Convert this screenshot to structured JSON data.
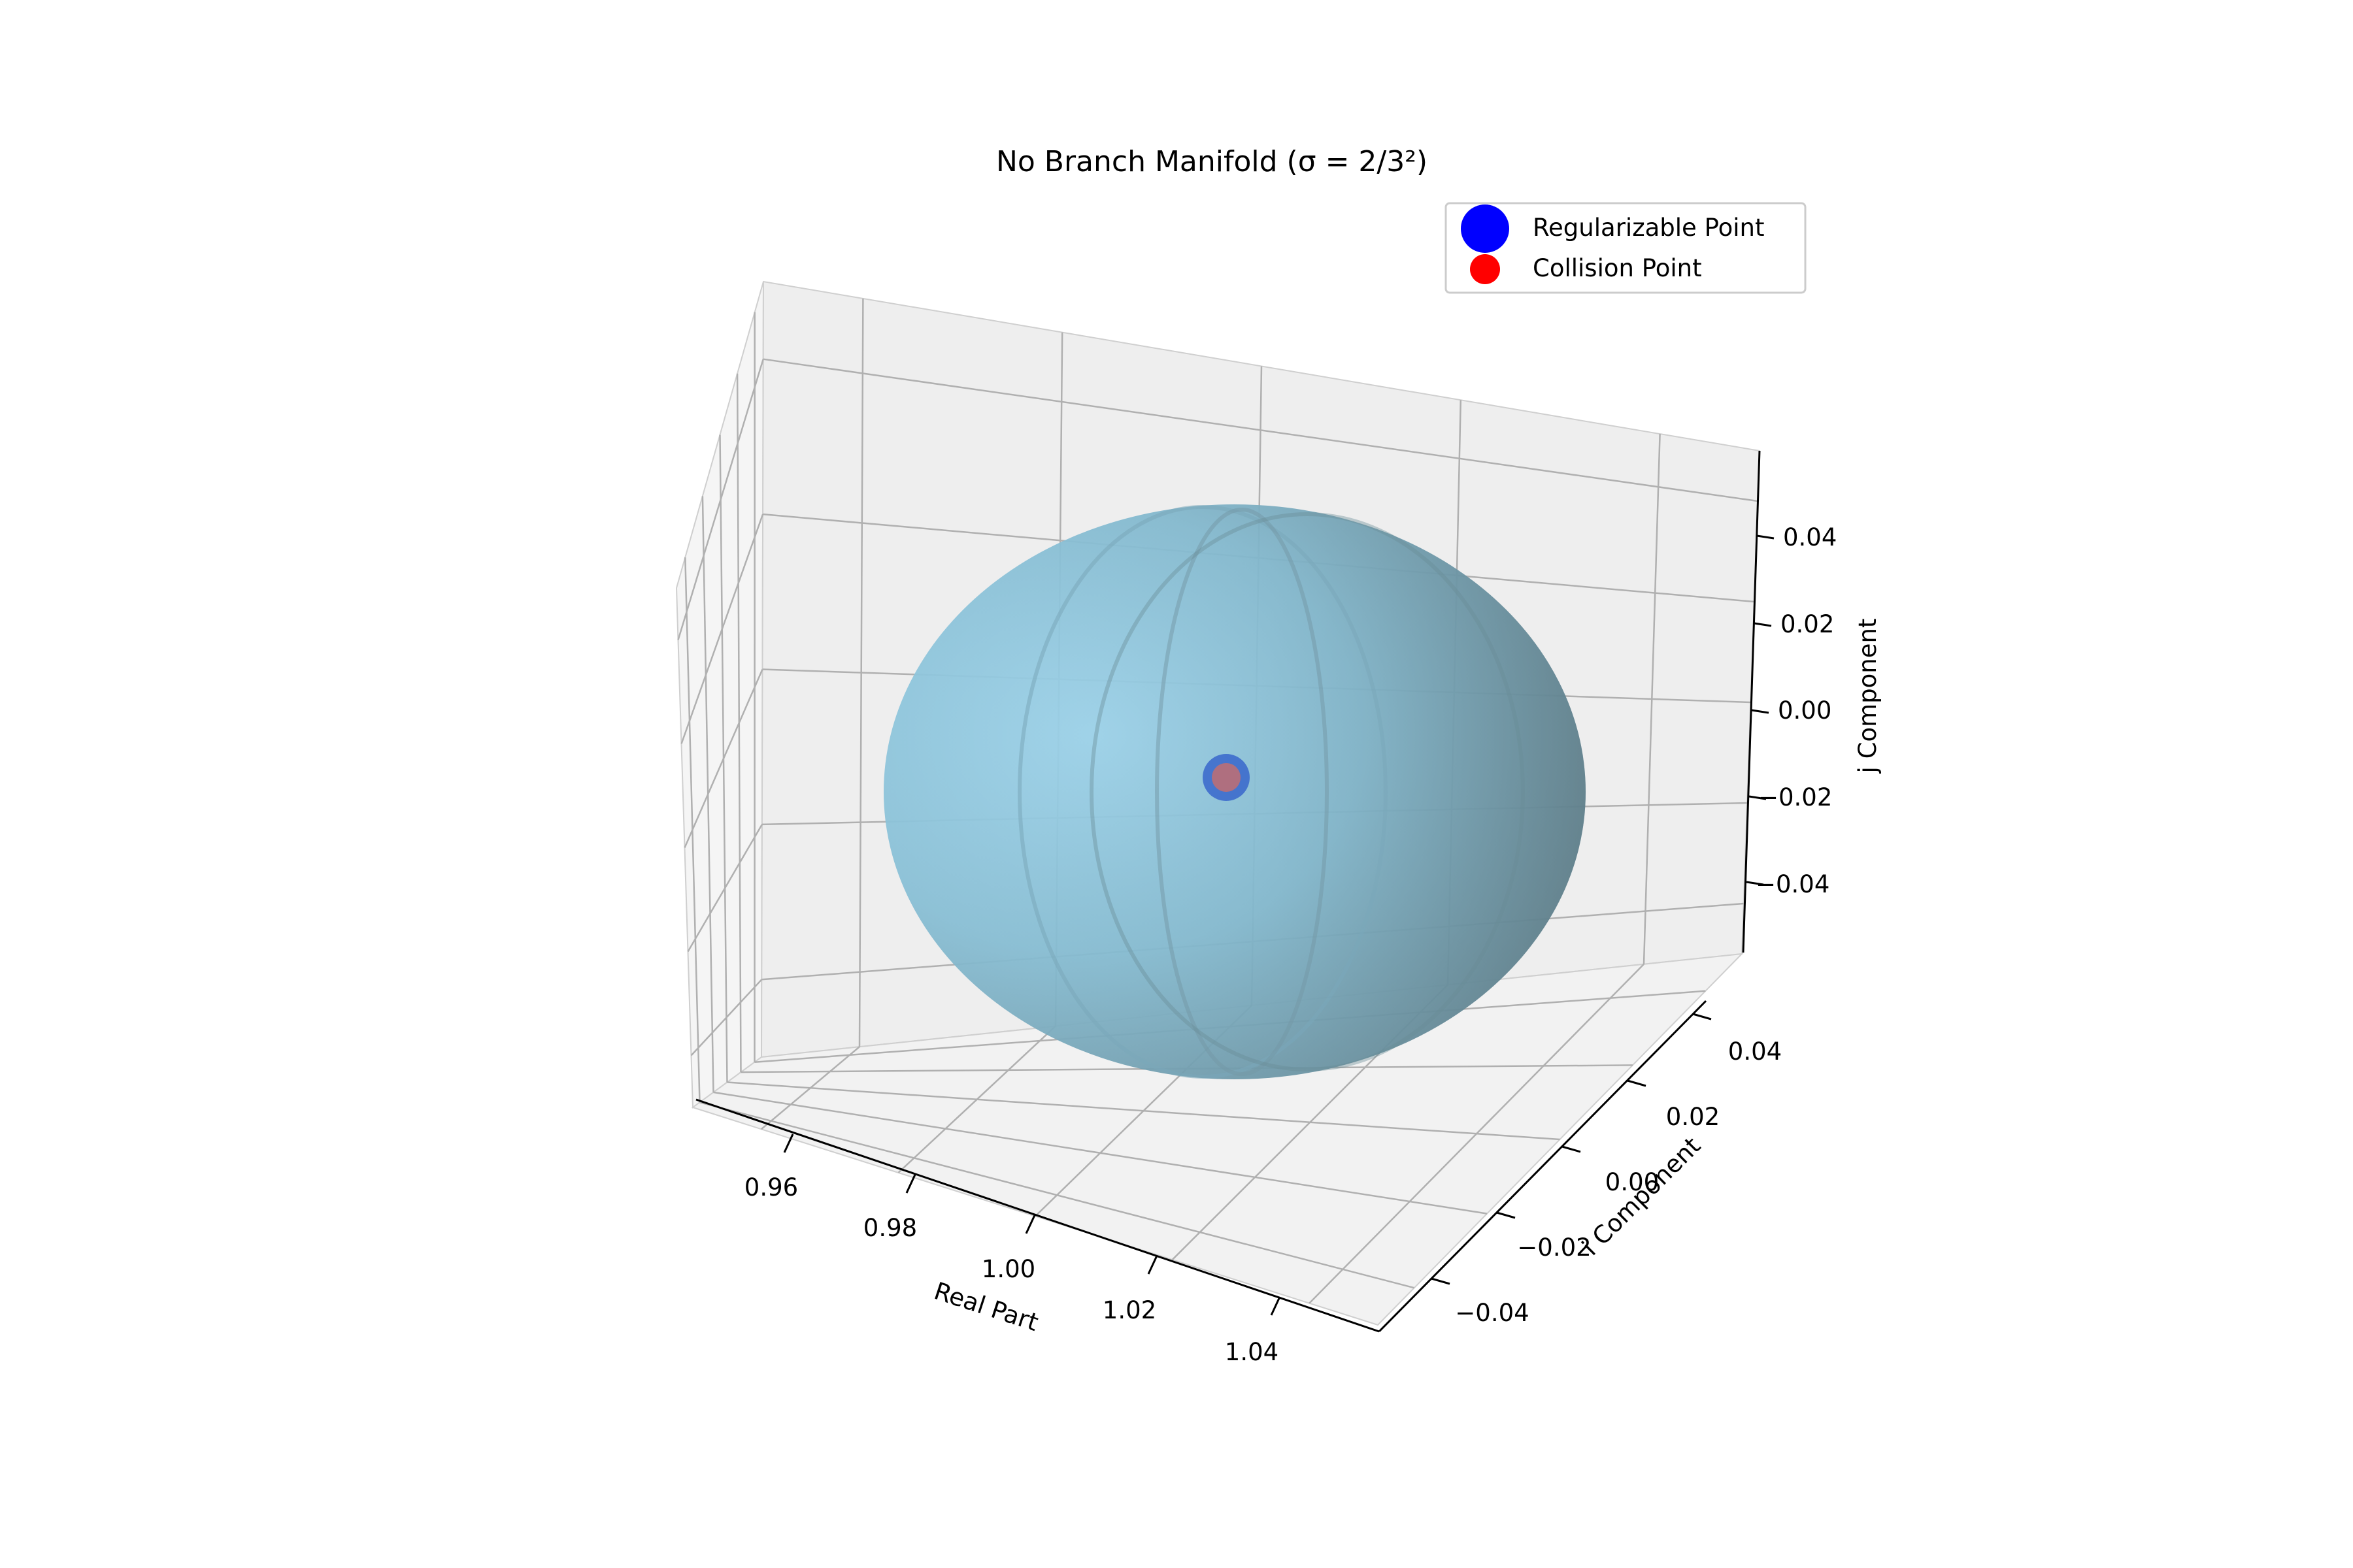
{
  "chart_data": {
    "type": "surface3d",
    "title": "No Branch Manifold (σ = 2/3²)",
    "xlabel": "Real Part",
    "ylabel": "i Component",
    "zlabel": "j Component",
    "xlim": [
      0.95,
      1.05
    ],
    "ylim": [
      -0.05,
      0.05
    ],
    "zlim": [
      -0.05,
      0.05
    ],
    "x_ticks": [
      "0.96",
      "0.98",
      "1.00",
      "1.02",
      "1.04"
    ],
    "y_ticks": [
      "−0.04",
      "−0.02",
      "0.00",
      "0.02",
      "0.04"
    ],
    "z_ticks": [
      "−0.04",
      "−0.02",
      "0.00",
      "0.02",
      "0.04"
    ],
    "grid": true,
    "legend_position": "top-right",
    "surface": {
      "shape": "sphere",
      "center": [
        1.0,
        0.0,
        0.0
      ],
      "radius": 0.05,
      "color": "#87CEEB"
    },
    "series": [
      {
        "name": "Regularizable Point",
        "marker": "circle",
        "color": "#0000FF",
        "points": [
          [
            1.0,
            0.0,
            0.0
          ]
        ]
      },
      {
        "name": "Collision Point",
        "marker": "circle",
        "color": "#FF0000",
        "points": [
          [
            1.0,
            0.0,
            0.0
          ]
        ]
      }
    ]
  }
}
